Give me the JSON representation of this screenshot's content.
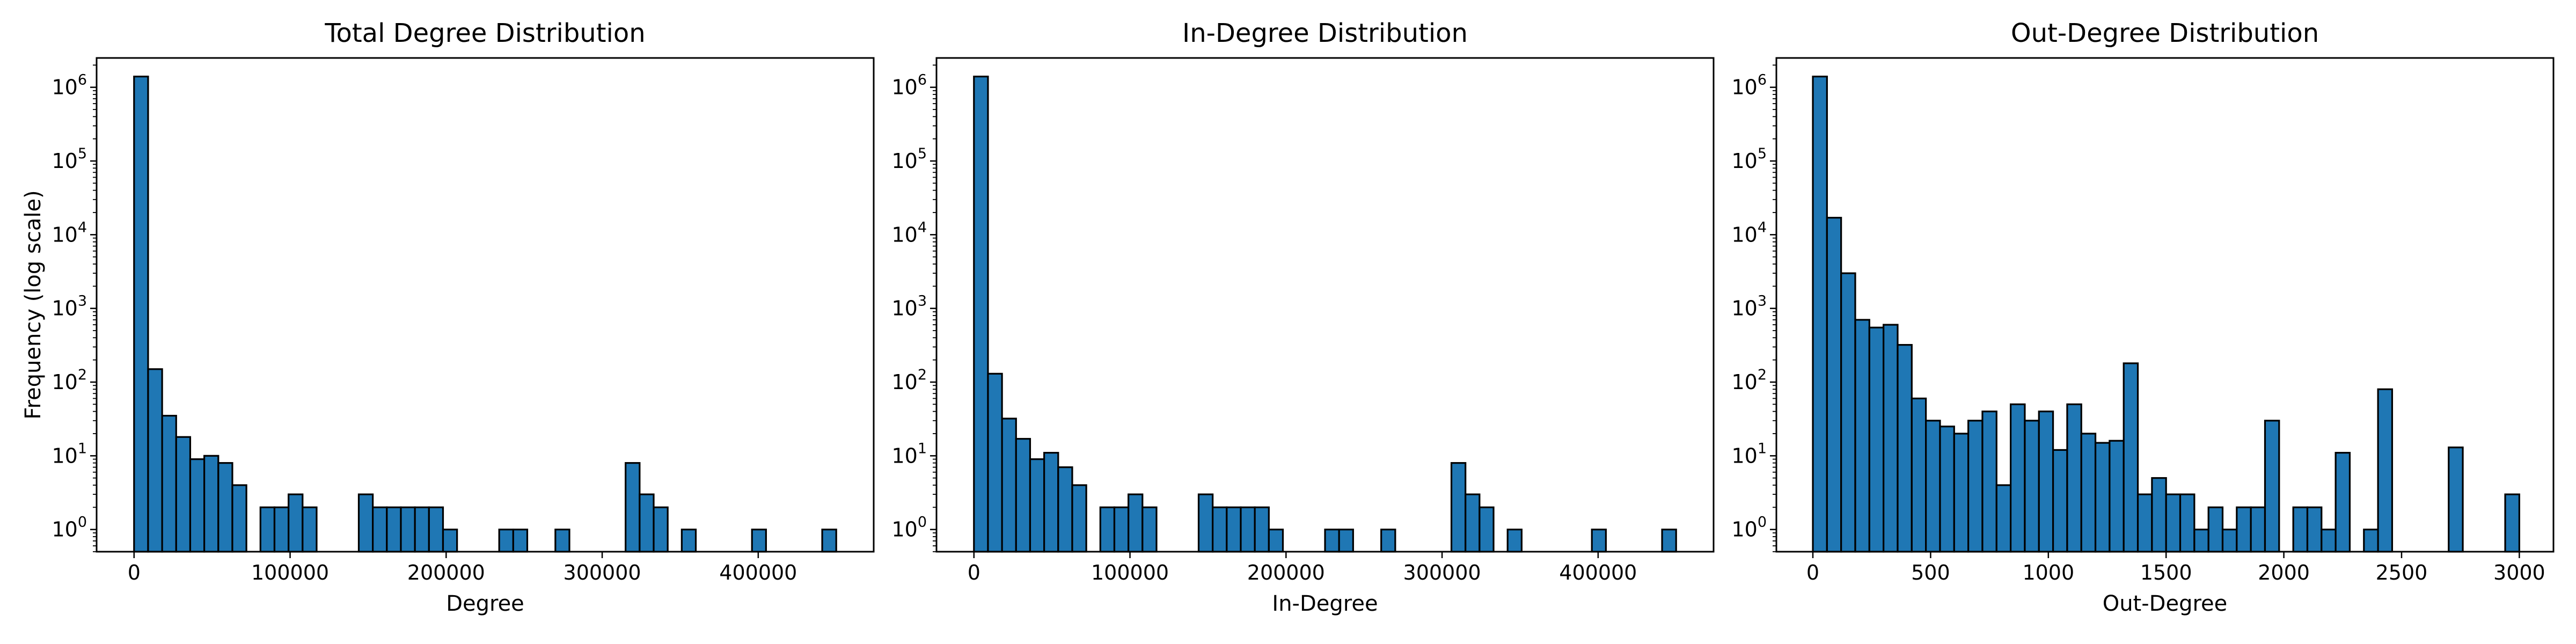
{
  "chart_data": [
    {
      "type": "bar",
      "title": "Total Degree Distribution",
      "xlabel": "Degree",
      "ylabel": "Frequency (log scale)",
      "yscale": "log",
      "xlim": [
        -24000,
        474000
      ],
      "ylim": [
        0.5,
        2500000
      ],
      "bin_width": 9000,
      "x_ticks": [
        0,
        100000,
        200000,
        300000,
        400000
      ],
      "y_ticks": [
        "10^0",
        "10^1",
        "10^2",
        "10^3",
        "10^4",
        "10^5",
        "10^6"
      ],
      "grid": false,
      "values": [
        1400000,
        150,
        35,
        18,
        9,
        10,
        8,
        4,
        0,
        2,
        2,
        3,
        2,
        0,
        0,
        0,
        3,
        2,
        2,
        2,
        2,
        2,
        1,
        0,
        0,
        0,
        1,
        1,
        0,
        0,
        1,
        0,
        0,
        0,
        0,
        8,
        3,
        2,
        0,
        1,
        0,
        0,
        0,
        0,
        1,
        0,
        0,
        0,
        0,
        1
      ]
    },
    {
      "type": "bar",
      "title": "In-Degree Distribution",
      "xlabel": "In-Degree",
      "ylabel": "",
      "yscale": "log",
      "xlim": [
        -24000,
        474000
      ],
      "ylim": [
        0.5,
        2500000
      ],
      "bin_width": 9000,
      "x_ticks": [
        0,
        100000,
        200000,
        300000,
        400000
      ],
      "y_ticks": [
        "10^0",
        "10^1",
        "10^2",
        "10^3",
        "10^4",
        "10^5",
        "10^6"
      ],
      "grid": false,
      "values": [
        1400000,
        130,
        32,
        17,
        9,
        11,
        7,
        4,
        0,
        2,
        2,
        3,
        2,
        0,
        0,
        0,
        3,
        2,
        2,
        2,
        2,
        1,
        0,
        0,
        0,
        1,
        1,
        0,
        0,
        1,
        0,
        0,
        0,
        0,
        8,
        3,
        2,
        0,
        1,
        0,
        0,
        0,
        0,
        0,
        1,
        0,
        0,
        0,
        0,
        1
      ]
    },
    {
      "type": "bar",
      "title": "Out-Degree Distribution",
      "xlabel": "Out-Degree",
      "ylabel": "",
      "yscale": "log",
      "xlim": [
        -155,
        3145
      ],
      "ylim": [
        0.5,
        2500000
      ],
      "bin_width": 60,
      "x_ticks": [
        0,
        500,
        1000,
        1500,
        2000,
        2500,
        3000
      ],
      "y_ticks": [
        "10^0",
        "10^1",
        "10^2",
        "10^3",
        "10^4",
        "10^5",
        "10^6"
      ],
      "grid": false,
      "values": [
        1400000,
        17000,
        3000,
        700,
        550,
        600,
        320,
        60,
        30,
        25,
        20,
        30,
        40,
        4,
        50,
        30,
        40,
        12,
        50,
        20,
        15,
        16,
        180,
        3,
        5,
        3,
        3,
        1,
        2,
        1,
        2,
        2,
        30,
        0,
        2,
        2,
        1,
        11,
        0,
        1,
        80,
        0,
        0,
        0,
        0,
        13,
        0,
        0,
        0,
        3
      ]
    }
  ]
}
